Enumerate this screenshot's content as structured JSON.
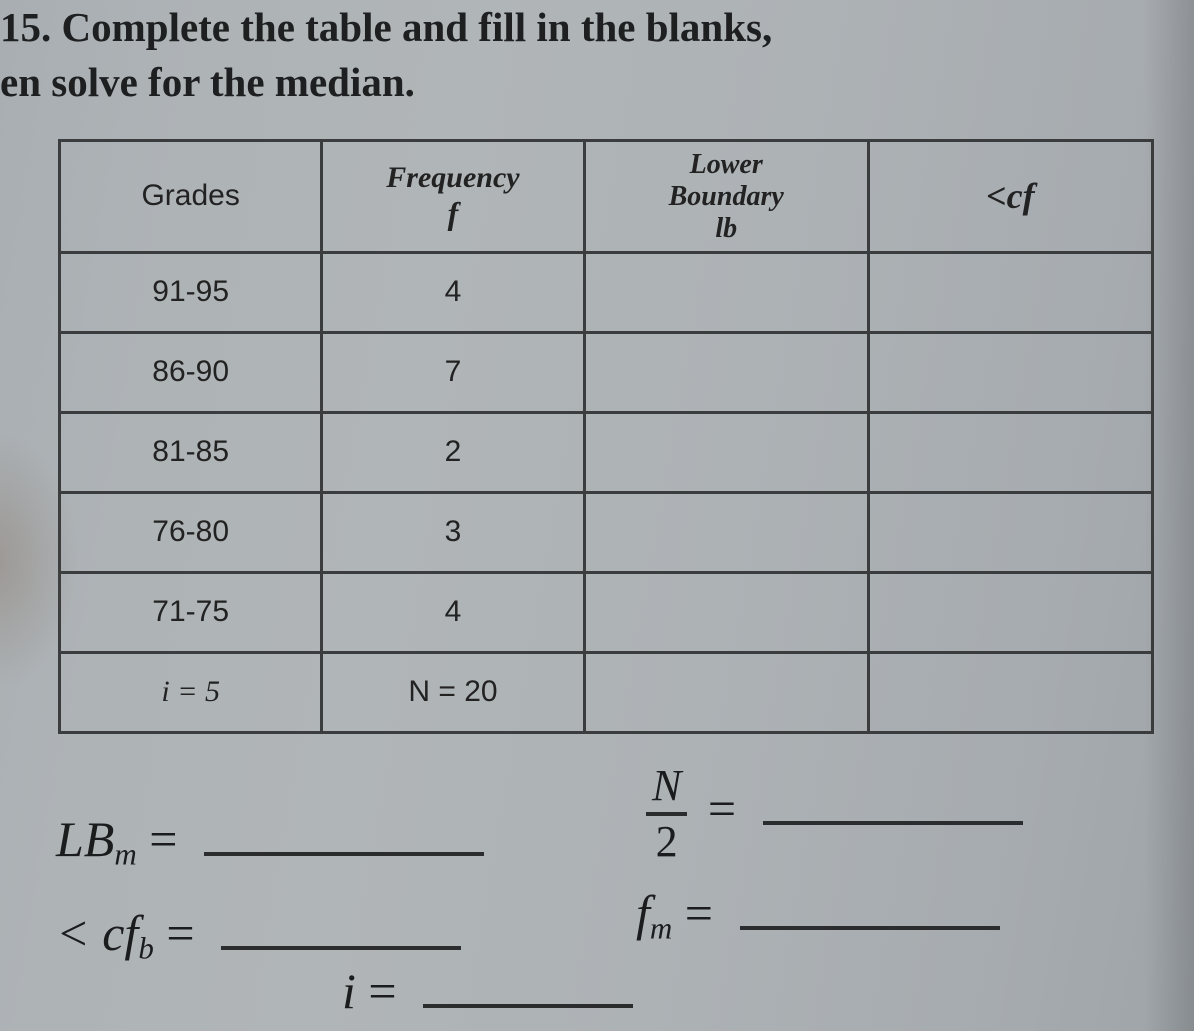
{
  "question": {
    "line1": "15. Complete the table and fill in the blanks,",
    "line2": "en solve for the median."
  },
  "table": {
    "headers": {
      "grades": "Grades",
      "frequency_word": "Frequency",
      "frequency_symbol": "f",
      "lower_word1": "Lower",
      "lower_word2": "Boundary",
      "lower_symbol": "lb",
      "cf": "<cf"
    },
    "rows": [
      {
        "grades": "91-95",
        "f": "4",
        "lb": "",
        "cf": ""
      },
      {
        "grades": "86-90",
        "f": "7",
        "lb": "",
        "cf": ""
      },
      {
        "grades": "81-85",
        "f": "2",
        "lb": "",
        "cf": ""
      },
      {
        "grades": "76-80",
        "f": "3",
        "lb": "",
        "cf": ""
      },
      {
        "grades": "71-75",
        "f": "4",
        "lb": "",
        "cf": ""
      }
    ],
    "summary": {
      "i_label": "i = 5",
      "n_label": "N = 20"
    }
  },
  "formulas": {
    "lbm_label": "LB",
    "lbm_sub": "m",
    "cfb_label": "< cf",
    "cfb_sub": "b",
    "n_over_2_num": "N",
    "n_over_2_den": "2",
    "fm_label": "f",
    "fm_sub": "m",
    "i_label": "i",
    "equals": "="
  },
  "style": {
    "border_color": "#3a3c3d",
    "text_color": "#1e1f20"
  }
}
